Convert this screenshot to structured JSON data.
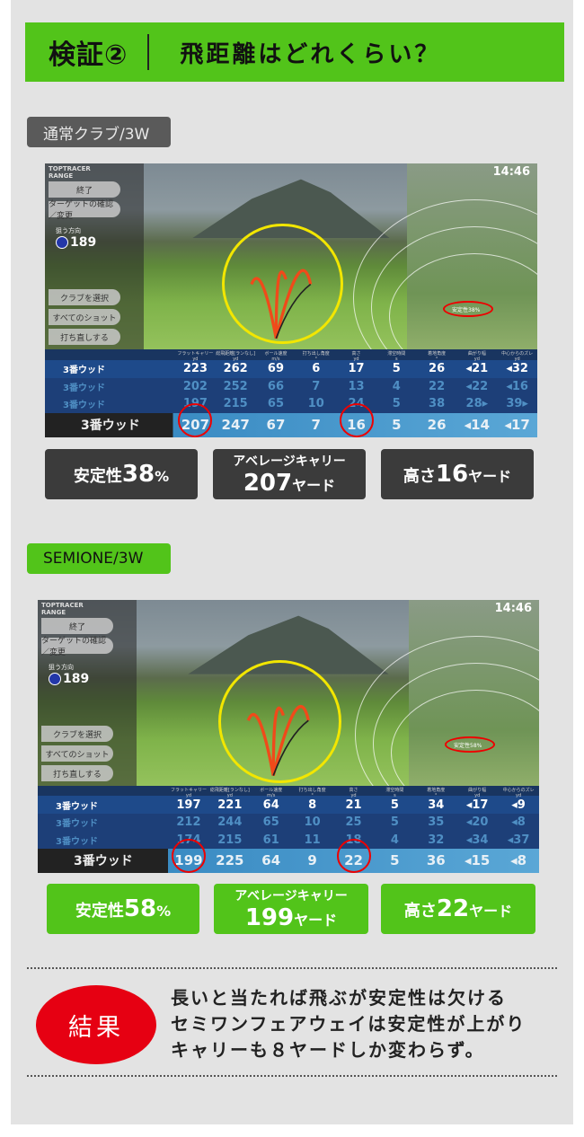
{
  "header": {
    "title": "検証②",
    "subtitle": "飛距離はどれくらい？"
  },
  "sections": [
    {
      "label": "通常クラブ/3W",
      "label_bg": "#5a5a5a",
      "label_color": "#e8e8e8",
      "box_bg": "#3b3b3b",
      "screen": {
        "logo": "TOPTRACER RANGE",
        "buttons": [
          "終了",
          "ターゲットの確認／変更",
          "クラブを選択",
          "すべてのショット",
          "打ち直しする"
        ],
        "aim_label": "狙う方向",
        "aim_value": "189",
        "time": "14:46",
        "stability": "安定性38%",
        "columns": [
          "フラットキャリー",
          "総飛距離[ランなし]",
          "ボール速度",
          "打ち出し角度",
          "高さ",
          "滞空時間",
          "着地角度",
          "曲がり幅",
          "中心からのズレ"
        ],
        "units": [
          "yd",
          "yd",
          "m/s",
          "°",
          "yd",
          "s",
          "°",
          "yd",
          "yd"
        ],
        "rows": [
          {
            "club": "3番ウッド",
            "values": [
              "223",
              "262",
              "69",
              "6",
              "17",
              "5",
              "26",
              "◂21",
              "◂32"
            ]
          },
          {
            "club": "3番ウッド",
            "values": [
              "202",
              "252",
              "66",
              "7",
              "13",
              "4",
              "22",
              "◂22",
              "◂16"
            ]
          },
          {
            "club": "3番ウッド",
            "values": [
              "197",
              "215",
              "65",
              "10",
              "24",
              "5",
              "38",
              "28▸",
              "39▸"
            ]
          }
        ],
        "average": {
          "club": "3番ウッド",
          "values": [
            "207",
            "247",
            "67",
            "7",
            "16",
            "5",
            "26",
            "◂14",
            "◂17"
          ]
        }
      },
      "stats": [
        {
          "a": "安定性",
          "b": "38",
          "c": "%"
        },
        {
          "top": "アベレージキャリー",
          "a": "207",
          "b": "ヤード"
        },
        {
          "a": "高さ",
          "b": "16",
          "c": "ヤード"
        }
      ]
    },
    {
      "label": "SEMIONE/3W",
      "label_bg": "#52c41a",
      "label_color": "#111",
      "box_bg": "#52c41a",
      "screen": {
        "logo": "TOPTRACER RANGE",
        "buttons": [
          "終了",
          "ターゲットの確認／変更",
          "クラブを選択",
          "すべてのショット",
          "打ち直しする"
        ],
        "aim_label": "狙う方向",
        "aim_value": "189",
        "time": "14:46",
        "stability": "安定性58%",
        "columns": [
          "フラットキャリー",
          "総飛距離[ランなし]",
          "ボール速度",
          "打ち出し角度",
          "高さ",
          "滞空時間",
          "着地角度",
          "曲がり幅",
          "中心からのズレ"
        ],
        "units": [
          "yd",
          "yd",
          "m/s",
          "°",
          "yd",
          "s",
          "°",
          "yd",
          "yd"
        ],
        "rows": [
          {
            "club": "3番ウッド",
            "values": [
              "197",
              "221",
              "64",
              "8",
              "21",
              "5",
              "34",
              "◂17",
              "◂9"
            ]
          },
          {
            "club": "3番ウッド",
            "values": [
              "212",
              "244",
              "65",
              "10",
              "25",
              "5",
              "35",
              "◂20",
              "◂8"
            ]
          },
          {
            "club": "3番ウッド",
            "values": [
              "174",
              "215",
              "61",
              "11",
              "18",
              "4",
              "32",
              "◂34",
              "◂37"
            ]
          }
        ],
        "average": {
          "club": "3番ウッド",
          "values": [
            "199",
            "225",
            "64",
            "9",
            "22",
            "5",
            "36",
            "◂15",
            "◂8"
          ]
        }
      },
      "stats": [
        {
          "a": "安定性",
          "b": "58",
          "c": "%"
        },
        {
          "top": "アベレージキャリー",
          "a": "199",
          "b": "ヤード"
        },
        {
          "a": "高さ",
          "b": "22",
          "c": "ヤード"
        }
      ]
    }
  ],
  "result": {
    "badge": "結果",
    "lines": [
      "長いと当たれば飛ぶが安定性は欠ける",
      "セミワンフェアウェイは安定性が上がり",
      "キャリーも８ヤードしか変わらず。"
    ]
  }
}
